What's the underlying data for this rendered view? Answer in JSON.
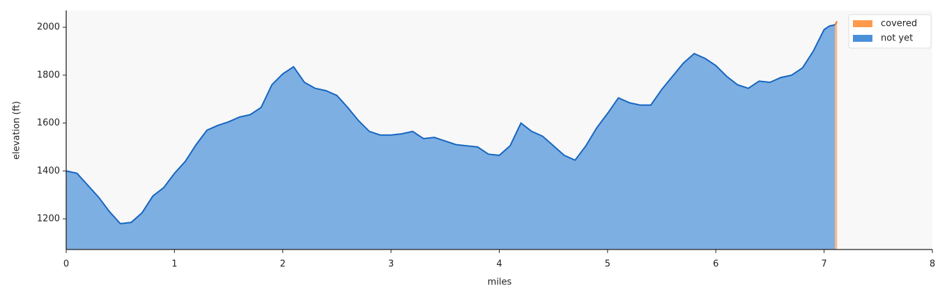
{
  "chart_data": {
    "type": "area",
    "xlabel": "miles",
    "ylabel": "elevation (ft)",
    "x": [
      0,
      0.1,
      0.2,
      0.3,
      0.4,
      0.5,
      0.6,
      0.7,
      0.8,
      0.9,
      1.0,
      1.1,
      1.2,
      1.3,
      1.4,
      1.5,
      1.6,
      1.7,
      1.8,
      1.9,
      2.0,
      2.1,
      2.2,
      2.3,
      2.4,
      2.5,
      2.6,
      2.7,
      2.8,
      2.9,
      3.0,
      3.1,
      3.2,
      3.3,
      3.4,
      3.5,
      3.6,
      3.7,
      3.8,
      3.9,
      4.0,
      4.1,
      4.2,
      4.3,
      4.4,
      4.5,
      4.6,
      4.7,
      4.8,
      4.9,
      5.0,
      5.1,
      5.2,
      5.3,
      5.4,
      5.5,
      5.6,
      5.7,
      5.8,
      5.9,
      6.0,
      6.1,
      6.2,
      6.3,
      6.4,
      6.5,
      6.6,
      6.7,
      6.8,
      6.9,
      7.0,
      7.05,
      7.1,
      7.12
    ],
    "series": [
      {
        "name": "covered",
        "color": "#ff9a4d",
        "line_color": "#f07a2a",
        "values": [
          null,
          null,
          null,
          null,
          null,
          null,
          null,
          null,
          null,
          null,
          null,
          null,
          null,
          null,
          null,
          null,
          null,
          null,
          null,
          null,
          null,
          null,
          null,
          null,
          null,
          null,
          null,
          null,
          null,
          null,
          null,
          null,
          null,
          null,
          null,
          null,
          null,
          null,
          null,
          null,
          null,
          null,
          null,
          null,
          null,
          null,
          null,
          null,
          null,
          null,
          null,
          null,
          null,
          null,
          null,
          null,
          null,
          null,
          null,
          null,
          null,
          null,
          null,
          null,
          null,
          null,
          null,
          null,
          null,
          null,
          null,
          null,
          2010,
          2025
        ]
      },
      {
        "name": "not yet",
        "color": "#4a90d9",
        "line_color": "#1565c0",
        "values": [
          1400,
          1390,
          1340,
          1290,
          1230,
          1180,
          1185,
          1225,
          1295,
          1330,
          1390,
          1440,
          1510,
          1570,
          1590,
          1605,
          1625,
          1635,
          1665,
          1760,
          1805,
          1835,
          1770,
          1745,
          1735,
          1715,
          1665,
          1610,
          1565,
          1550,
          1550,
          1555,
          1565,
          1535,
          1540,
          1525,
          1510,
          1505,
          1500,
          1470,
          1465,
          1505,
          1600,
          1565,
          1545,
          1505,
          1465,
          1445,
          1505,
          1580,
          1640,
          1705,
          1685,
          1675,
          1675,
          1740,
          1795,
          1850,
          1890,
          1870,
          1840,
          1795,
          1760,
          1745,
          1775,
          1770,
          1790,
          1800,
          1830,
          1900,
          1990,
          2005,
          2010,
          null
        ]
      }
    ],
    "xlim": [
      0,
      8
    ],
    "xticks": [
      0,
      1,
      2,
      3,
      4,
      5,
      6,
      7,
      8
    ],
    "ylim": [
      1072,
      2070
    ],
    "yticks": [
      1200,
      1400,
      1600,
      1800,
      2000
    ],
    "legend": "upper right"
  }
}
